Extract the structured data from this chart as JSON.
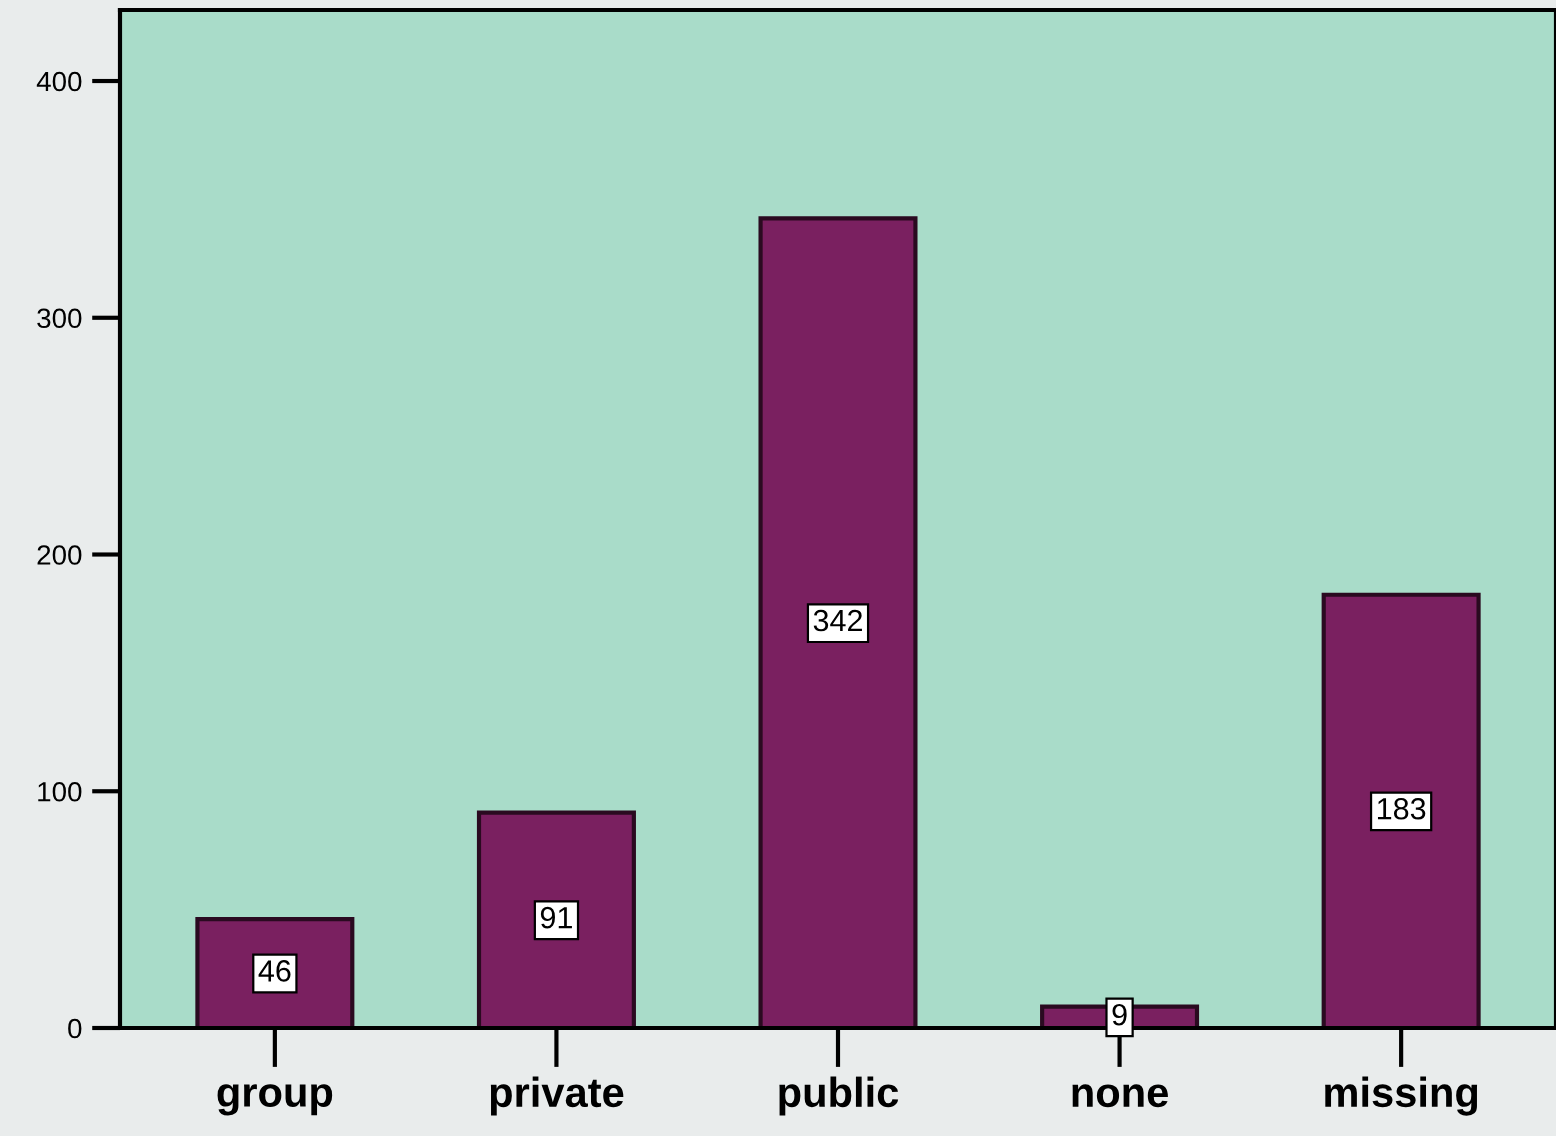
{
  "chart_data": {
    "type": "bar",
    "categories": [
      "group",
      "private",
      "public",
      "none",
      "missing"
    ],
    "values": [
      46,
      91,
      342,
      9,
      183
    ],
    "color": "#7a2060",
    "ylim": [
      0,
      430
    ],
    "yticks": [
      0,
      100,
      200,
      300,
      400
    ],
    "data_labels": true,
    "grid": false,
    "legend": false
  }
}
